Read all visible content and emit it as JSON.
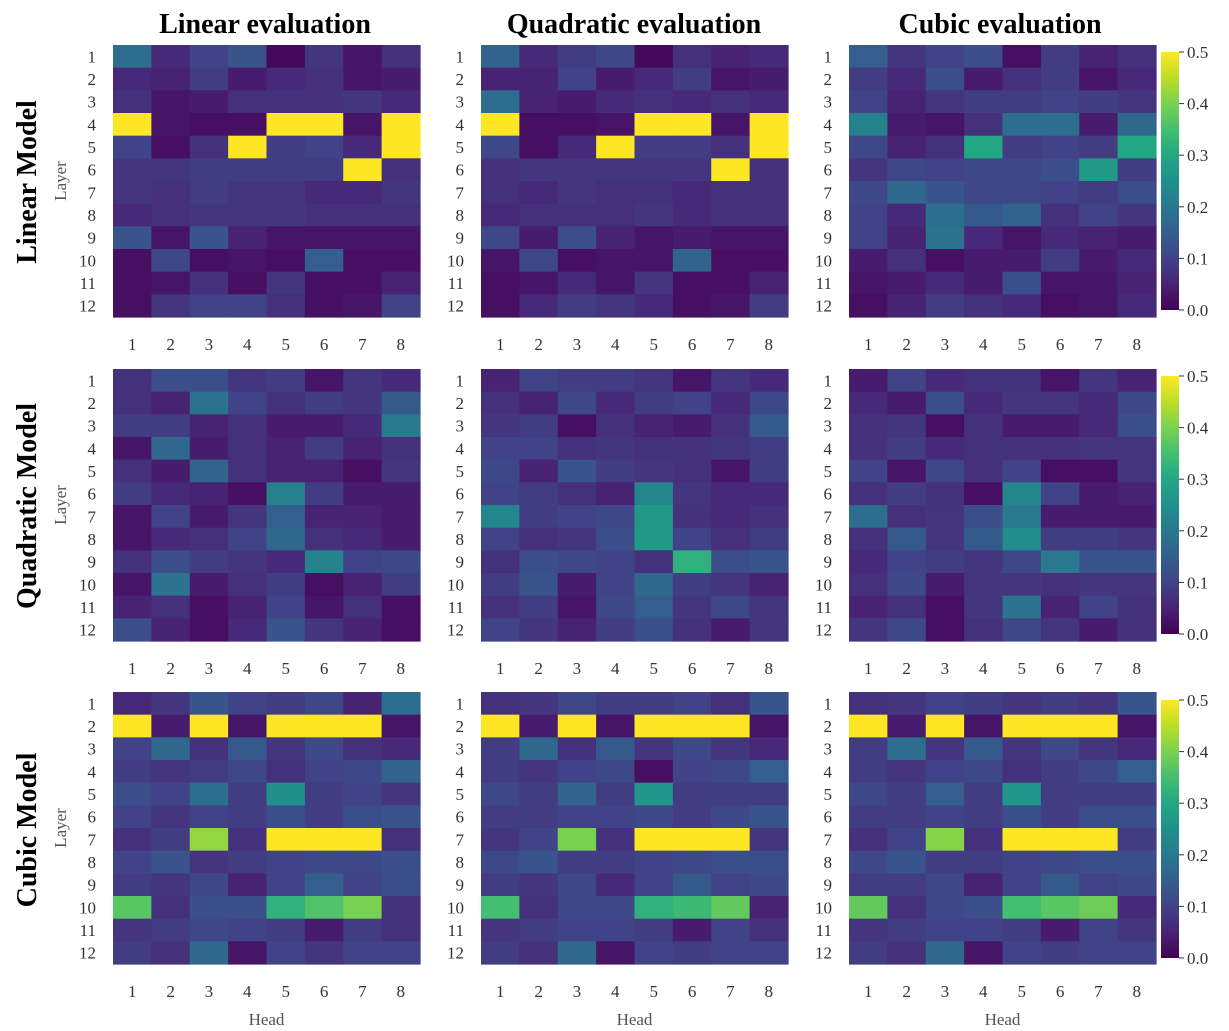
{
  "column_titles": [
    "Linear evaluation",
    "Quadratic evaluation",
    "Cubic evaluation"
  ],
  "row_titles": [
    "Linear Model",
    "Quadratic Model",
    "Cubic Model"
  ],
  "x_axis_label": "Head",
  "y_axis_label": "Layer",
  "x_ticks": [
    "1",
    "2",
    "3",
    "4",
    "5",
    "6",
    "7",
    "8"
  ],
  "y_ticks": [
    "1",
    "2",
    "3",
    "4",
    "5",
    "6",
    "7",
    "8",
    "9",
    "10",
    "11",
    "12"
  ],
  "colorbar_ticks": [
    "0.0",
    "0.1",
    "0.2",
    "0.3",
    "0.4",
    "0.5"
  ],
  "colormap": "viridis",
  "chart_data": [
    {
      "type": "heatmap",
      "row": "Linear Model",
      "column": "Linear evaluation",
      "xlabel": "",
      "ylabel": "Layer",
      "vmin": 0,
      "vmax": 0.5,
      "values": [
        [
          0.18,
          0.06,
          0.1,
          0.13,
          0.01,
          0.08,
          0.03,
          0.07
        ],
        [
          0.06,
          0.05,
          0.09,
          0.04,
          0.06,
          0.07,
          0.03,
          0.04
        ],
        [
          0.07,
          0.03,
          0.04,
          0.07,
          0.07,
          0.07,
          0.08,
          0.06
        ],
        [
          0.5,
          0.03,
          0.02,
          0.02,
          0.5,
          0.5,
          0.03,
          0.5
        ],
        [
          0.1,
          0.02,
          0.07,
          0.5,
          0.09,
          0.1,
          0.06,
          0.5
        ],
        [
          0.08,
          0.08,
          0.09,
          0.09,
          0.09,
          0.09,
          0.5,
          0.07
        ],
        [
          0.08,
          0.07,
          0.09,
          0.08,
          0.08,
          0.06,
          0.06,
          0.08
        ],
        [
          0.06,
          0.07,
          0.08,
          0.08,
          0.08,
          0.07,
          0.07,
          0.07
        ],
        [
          0.13,
          0.03,
          0.13,
          0.05,
          0.03,
          0.03,
          0.03,
          0.03
        ],
        [
          0.02,
          0.11,
          0.02,
          0.03,
          0.02,
          0.15,
          0.02,
          0.02
        ],
        [
          0.02,
          0.03,
          0.07,
          0.02,
          0.08,
          0.02,
          0.02,
          0.05
        ],
        [
          0.02,
          0.08,
          0.1,
          0.1,
          0.07,
          0.02,
          0.03,
          0.1
        ]
      ]
    },
    {
      "type": "heatmap",
      "row": "Linear Model",
      "column": "Quadratic evaluation",
      "xlabel": "",
      "ylabel": "",
      "vmin": 0,
      "vmax": 0.5,
      "values": [
        [
          0.16,
          0.06,
          0.09,
          0.11,
          0.01,
          0.07,
          0.05,
          0.06
        ],
        [
          0.05,
          0.05,
          0.1,
          0.04,
          0.06,
          0.09,
          0.03,
          0.04
        ],
        [
          0.18,
          0.05,
          0.04,
          0.06,
          0.07,
          0.06,
          0.07,
          0.06
        ],
        [
          0.5,
          0.02,
          0.02,
          0.03,
          0.5,
          0.5,
          0.03,
          0.5
        ],
        [
          0.11,
          0.02,
          0.06,
          0.5,
          0.09,
          0.09,
          0.07,
          0.5
        ],
        [
          0.07,
          0.08,
          0.08,
          0.08,
          0.08,
          0.08,
          0.5,
          0.07
        ],
        [
          0.07,
          0.06,
          0.08,
          0.07,
          0.07,
          0.06,
          0.07,
          0.07
        ],
        [
          0.06,
          0.07,
          0.07,
          0.07,
          0.08,
          0.06,
          0.07,
          0.07
        ],
        [
          0.11,
          0.04,
          0.12,
          0.05,
          0.03,
          0.04,
          0.03,
          0.03
        ],
        [
          0.03,
          0.11,
          0.02,
          0.03,
          0.03,
          0.16,
          0.02,
          0.02
        ],
        [
          0.02,
          0.03,
          0.06,
          0.03,
          0.08,
          0.02,
          0.02,
          0.05
        ],
        [
          0.02,
          0.06,
          0.09,
          0.08,
          0.06,
          0.02,
          0.03,
          0.09
        ]
      ]
    },
    {
      "type": "heatmap",
      "row": "Linear Model",
      "column": "Cubic evaluation",
      "xlabel": "",
      "ylabel": "",
      "vmin": 0,
      "vmax": 0.5,
      "values": [
        [
          0.15,
          0.08,
          0.1,
          0.12,
          0.02,
          0.09,
          0.05,
          0.07
        ],
        [
          0.09,
          0.06,
          0.12,
          0.04,
          0.07,
          0.09,
          0.03,
          0.06
        ],
        [
          0.1,
          0.05,
          0.08,
          0.09,
          0.09,
          0.1,
          0.09,
          0.08
        ],
        [
          0.22,
          0.04,
          0.03,
          0.07,
          0.18,
          0.18,
          0.04,
          0.17
        ],
        [
          0.11,
          0.05,
          0.07,
          0.3,
          0.09,
          0.1,
          0.09,
          0.3
        ],
        [
          0.08,
          0.11,
          0.1,
          0.11,
          0.11,
          0.12,
          0.27,
          0.09
        ],
        [
          0.11,
          0.17,
          0.13,
          0.11,
          0.11,
          0.1,
          0.09,
          0.12
        ],
        [
          0.1,
          0.06,
          0.18,
          0.14,
          0.16,
          0.07,
          0.1,
          0.08
        ],
        [
          0.1,
          0.05,
          0.19,
          0.06,
          0.03,
          0.06,
          0.05,
          0.04
        ],
        [
          0.04,
          0.07,
          0.02,
          0.04,
          0.04,
          0.09,
          0.04,
          0.06
        ],
        [
          0.03,
          0.04,
          0.06,
          0.04,
          0.12,
          0.03,
          0.03,
          0.05
        ],
        [
          0.02,
          0.05,
          0.09,
          0.07,
          0.06,
          0.02,
          0.03,
          0.06
        ]
      ]
    },
    {
      "type": "heatmap",
      "row": "Quadratic Model",
      "column": "Linear evaluation",
      "xlabel": "",
      "ylabel": "Layer",
      "vmin": 0,
      "vmax": 0.5,
      "values": [
        [
          0.07,
          0.12,
          0.12,
          0.08,
          0.09,
          0.03,
          0.08,
          0.06
        ],
        [
          0.07,
          0.05,
          0.19,
          0.1,
          0.07,
          0.09,
          0.08,
          0.14
        ],
        [
          0.09,
          0.09,
          0.05,
          0.07,
          0.04,
          0.04,
          0.06,
          0.2
        ],
        [
          0.03,
          0.17,
          0.04,
          0.07,
          0.05,
          0.09,
          0.05,
          0.07
        ],
        [
          0.07,
          0.04,
          0.16,
          0.07,
          0.05,
          0.05,
          0.02,
          0.08
        ],
        [
          0.09,
          0.06,
          0.05,
          0.02,
          0.22,
          0.09,
          0.04,
          0.04
        ],
        [
          0.03,
          0.1,
          0.04,
          0.08,
          0.15,
          0.05,
          0.05,
          0.04
        ],
        [
          0.03,
          0.06,
          0.07,
          0.1,
          0.17,
          0.07,
          0.06,
          0.04
        ],
        [
          0.07,
          0.12,
          0.09,
          0.08,
          0.06,
          0.22,
          0.1,
          0.11
        ],
        [
          0.03,
          0.19,
          0.04,
          0.07,
          0.09,
          0.02,
          0.05,
          0.09
        ],
        [
          0.05,
          0.07,
          0.02,
          0.05,
          0.1,
          0.03,
          0.07,
          0.02
        ],
        [
          0.12,
          0.05,
          0.02,
          0.06,
          0.13,
          0.08,
          0.05,
          0.02
        ]
      ]
    },
    {
      "type": "heatmap",
      "row": "Quadratic Model",
      "column": "Quadratic evaluation",
      "xlabel": "",
      "ylabel": "",
      "vmin": 0,
      "vmax": 0.5,
      "values": [
        [
          0.05,
          0.1,
          0.09,
          0.09,
          0.08,
          0.03,
          0.08,
          0.06
        ],
        [
          0.07,
          0.05,
          0.11,
          0.06,
          0.09,
          0.1,
          0.06,
          0.11
        ],
        [
          0.08,
          0.09,
          0.02,
          0.07,
          0.05,
          0.04,
          0.07,
          0.14
        ],
        [
          0.1,
          0.1,
          0.07,
          0.08,
          0.07,
          0.07,
          0.08,
          0.09
        ],
        [
          0.11,
          0.05,
          0.13,
          0.09,
          0.08,
          0.07,
          0.03,
          0.09
        ],
        [
          0.1,
          0.09,
          0.07,
          0.05,
          0.23,
          0.08,
          0.06,
          0.06
        ],
        [
          0.23,
          0.09,
          0.1,
          0.11,
          0.27,
          0.07,
          0.06,
          0.07
        ],
        [
          0.1,
          0.07,
          0.08,
          0.12,
          0.27,
          0.1,
          0.07,
          0.09
        ],
        [
          0.07,
          0.12,
          0.11,
          0.1,
          0.07,
          0.32,
          0.12,
          0.13
        ],
        [
          0.09,
          0.13,
          0.04,
          0.1,
          0.17,
          0.09,
          0.08,
          0.05
        ],
        [
          0.07,
          0.09,
          0.03,
          0.11,
          0.15,
          0.08,
          0.11,
          0.08
        ],
        [
          0.1,
          0.08,
          0.05,
          0.09,
          0.12,
          0.07,
          0.04,
          0.08
        ]
      ]
    },
    {
      "type": "heatmap",
      "row": "Quadratic Model",
      "column": "Cubic evaluation",
      "xlabel": "",
      "ylabel": "",
      "vmin": 0,
      "vmax": 0.5,
      "values": [
        [
          0.04,
          0.1,
          0.06,
          0.07,
          0.07,
          0.03,
          0.08,
          0.05
        ],
        [
          0.06,
          0.04,
          0.12,
          0.06,
          0.08,
          0.08,
          0.06,
          0.11
        ],
        [
          0.07,
          0.08,
          0.02,
          0.07,
          0.04,
          0.04,
          0.06,
          0.12
        ],
        [
          0.07,
          0.09,
          0.06,
          0.07,
          0.07,
          0.07,
          0.08,
          0.08
        ],
        [
          0.1,
          0.03,
          0.11,
          0.07,
          0.1,
          0.02,
          0.02,
          0.08
        ],
        [
          0.07,
          0.09,
          0.07,
          0.02,
          0.23,
          0.1,
          0.04,
          0.05
        ],
        [
          0.18,
          0.07,
          0.08,
          0.12,
          0.2,
          0.04,
          0.04,
          0.04
        ],
        [
          0.07,
          0.14,
          0.08,
          0.14,
          0.24,
          0.09,
          0.09,
          0.08
        ],
        [
          0.06,
          0.1,
          0.09,
          0.08,
          0.11,
          0.2,
          0.13,
          0.13
        ],
        [
          0.07,
          0.11,
          0.04,
          0.08,
          0.08,
          0.07,
          0.08,
          0.08
        ],
        [
          0.05,
          0.07,
          0.02,
          0.08,
          0.19,
          0.05,
          0.1,
          0.07
        ],
        [
          0.08,
          0.11,
          0.02,
          0.07,
          0.11,
          0.08,
          0.04,
          0.07
        ]
      ]
    },
    {
      "type": "heatmap",
      "row": "Cubic Model",
      "column": "Linear evaluation",
      "xlabel": "Head",
      "ylabel": "Layer",
      "vmin": 0,
      "vmax": 0.5,
      "values": [
        [
          0.06,
          0.08,
          0.13,
          0.1,
          0.09,
          0.11,
          0.05,
          0.18
        ],
        [
          0.5,
          0.04,
          0.5,
          0.03,
          0.5,
          0.5,
          0.5,
          0.03
        ],
        [
          0.1,
          0.17,
          0.07,
          0.14,
          0.08,
          0.11,
          0.07,
          0.06
        ],
        [
          0.09,
          0.08,
          0.09,
          0.11,
          0.07,
          0.1,
          0.11,
          0.16
        ],
        [
          0.12,
          0.1,
          0.18,
          0.09,
          0.25,
          0.09,
          0.1,
          0.08
        ],
        [
          0.1,
          0.08,
          0.1,
          0.09,
          0.12,
          0.09,
          0.12,
          0.13
        ],
        [
          0.07,
          0.09,
          0.42,
          0.07,
          0.5,
          0.5,
          0.5,
          0.07
        ],
        [
          0.1,
          0.13,
          0.08,
          0.09,
          0.1,
          0.11,
          0.11,
          0.12
        ],
        [
          0.09,
          0.08,
          0.11,
          0.05,
          0.1,
          0.15,
          0.1,
          0.12
        ],
        [
          0.37,
          0.07,
          0.12,
          0.12,
          0.32,
          0.36,
          0.4,
          0.07
        ],
        [
          0.08,
          0.09,
          0.11,
          0.1,
          0.09,
          0.04,
          0.09,
          0.07
        ],
        [
          0.09,
          0.07,
          0.17,
          0.03,
          0.1,
          0.08,
          0.1,
          0.1
        ]
      ]
    },
    {
      "type": "heatmap",
      "row": "Cubic Model",
      "column": "Quadratic evaluation",
      "xlabel": "Head",
      "ylabel": "",
      "vmin": 0,
      "vmax": 0.5,
      "values": [
        [
          0.07,
          0.08,
          0.11,
          0.09,
          0.09,
          0.1,
          0.07,
          0.13
        ],
        [
          0.5,
          0.04,
          0.5,
          0.03,
          0.5,
          0.5,
          0.5,
          0.03
        ],
        [
          0.09,
          0.17,
          0.07,
          0.14,
          0.08,
          0.11,
          0.08,
          0.06
        ],
        [
          0.09,
          0.08,
          0.1,
          0.11,
          0.02,
          0.1,
          0.11,
          0.15
        ],
        [
          0.11,
          0.09,
          0.16,
          0.09,
          0.26,
          0.09,
          0.09,
          0.09
        ],
        [
          0.09,
          0.09,
          0.1,
          0.1,
          0.11,
          0.09,
          0.11,
          0.13
        ],
        [
          0.08,
          0.1,
          0.4,
          0.07,
          0.5,
          0.5,
          0.5,
          0.08
        ],
        [
          0.11,
          0.13,
          0.09,
          0.09,
          0.1,
          0.11,
          0.12,
          0.12
        ],
        [
          0.09,
          0.08,
          0.11,
          0.06,
          0.1,
          0.14,
          0.1,
          0.11
        ],
        [
          0.35,
          0.07,
          0.11,
          0.11,
          0.32,
          0.34,
          0.38,
          0.05
        ],
        [
          0.08,
          0.09,
          0.1,
          0.1,
          0.09,
          0.04,
          0.1,
          0.07
        ],
        [
          0.09,
          0.07,
          0.17,
          0.03,
          0.1,
          0.09,
          0.1,
          0.1
        ]
      ]
    },
    {
      "type": "heatmap",
      "row": "Cubic Model",
      "column": "Cubic evaluation",
      "xlabel": "Head",
      "ylabel": "",
      "vmin": 0,
      "vmax": 0.5,
      "values": [
        [
          0.07,
          0.08,
          0.1,
          0.09,
          0.08,
          0.09,
          0.08,
          0.13
        ],
        [
          0.5,
          0.04,
          0.5,
          0.03,
          0.5,
          0.5,
          0.5,
          0.03
        ],
        [
          0.09,
          0.18,
          0.08,
          0.14,
          0.08,
          0.11,
          0.08,
          0.06
        ],
        [
          0.09,
          0.08,
          0.1,
          0.11,
          0.07,
          0.09,
          0.11,
          0.15
        ],
        [
          0.11,
          0.09,
          0.15,
          0.09,
          0.26,
          0.09,
          0.09,
          0.09
        ],
        [
          0.09,
          0.09,
          0.1,
          0.09,
          0.12,
          0.09,
          0.12,
          0.12
        ],
        [
          0.07,
          0.1,
          0.41,
          0.07,
          0.5,
          0.5,
          0.5,
          0.09
        ],
        [
          0.11,
          0.13,
          0.09,
          0.09,
          0.1,
          0.11,
          0.12,
          0.12
        ],
        [
          0.09,
          0.09,
          0.11,
          0.05,
          0.1,
          0.14,
          0.1,
          0.11
        ],
        [
          0.38,
          0.07,
          0.11,
          0.12,
          0.35,
          0.37,
          0.39,
          0.06
        ],
        [
          0.08,
          0.09,
          0.1,
          0.1,
          0.09,
          0.04,
          0.1,
          0.08
        ],
        [
          0.09,
          0.07,
          0.17,
          0.03,
          0.1,
          0.09,
          0.1,
          0.1
        ]
      ]
    }
  ]
}
